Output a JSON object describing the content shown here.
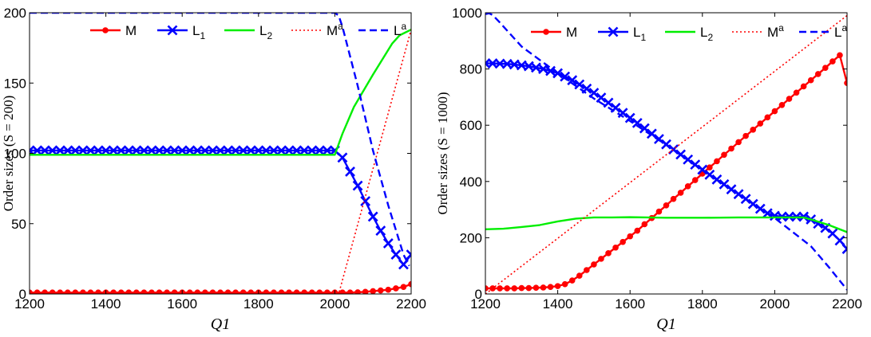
{
  "chart_data": [
    {
      "type": "line",
      "name": "left",
      "xlabel": "Q1",
      "ylabel": "Order sizes (S = 200)",
      "xlim": [
        1200,
        2200
      ],
      "ylim": [
        0,
        200
      ],
      "xticks": [
        1200,
        1400,
        1600,
        1800,
        2000,
        2200
      ],
      "yticks": [
        0,
        50,
        100,
        150,
        200
      ],
      "xtick_labels": [
        "1200",
        "1400",
        "1600",
        "1800",
        "2000",
        "2200"
      ],
      "ytick_labels": [
        "0",
        "50",
        "100",
        "150",
        "200"
      ],
      "legend_position": "top",
      "series": [
        {
          "name": "M",
          "label": "M",
          "sup": "",
          "sub": "",
          "color": "#ff0000",
          "style": "solid",
          "marker": "dot",
          "x": [
            1200,
            1220,
            1240,
            1260,
            1280,
            1300,
            1320,
            1340,
            1360,
            1380,
            1400,
            1420,
            1440,
            1460,
            1480,
            1500,
            1520,
            1540,
            1560,
            1580,
            1600,
            1620,
            1640,
            1660,
            1680,
            1700,
            1720,
            1740,
            1760,
            1780,
            1800,
            1820,
            1840,
            1860,
            1880,
            1900,
            1920,
            1940,
            1960,
            1980,
            2000,
            2020,
            2040,
            2060,
            2080,
            2100,
            2120,
            2140,
            2160,
            2180,
            2200
          ],
          "y": [
            1,
            1,
            1,
            1,
            1,
            1,
            1,
            1,
            1,
            1,
            1,
            1,
            1,
            1,
            1,
            1,
            1,
            1,
            1,
            1,
            1,
            1,
            1,
            1,
            1,
            1,
            1,
            1,
            1,
            1,
            1,
            1,
            1,
            1,
            1,
            1,
            1,
            1,
            1,
            1,
            1,
            1,
            1,
            1.2,
            1.5,
            2,
            2.5,
            3,
            4,
            5,
            7
          ]
        },
        {
          "name": "L1",
          "label": "L",
          "sup": "",
          "sub": "1",
          "color": "#0000ff",
          "style": "solid",
          "marker": "x",
          "x": [
            1200,
            1220,
            1240,
            1260,
            1280,
            1300,
            1320,
            1340,
            1360,
            1380,
            1400,
            1420,
            1440,
            1460,
            1480,
            1500,
            1520,
            1540,
            1560,
            1580,
            1600,
            1620,
            1640,
            1660,
            1680,
            1700,
            1720,
            1740,
            1760,
            1780,
            1800,
            1820,
            1840,
            1860,
            1880,
            1900,
            1920,
            1940,
            1960,
            1980,
            2000,
            2020,
            2040,
            2060,
            2080,
            2100,
            2120,
            2140,
            2160,
            2180,
            2200
          ],
          "y": [
            102,
            102,
            102,
            102,
            102,
            102,
            102,
            102,
            102,
            102,
            102,
            102,
            102,
            102,
            102,
            102,
            102,
            102,
            102,
            102,
            102,
            102,
            102,
            102,
            102,
            102,
            102,
            102,
            102,
            102,
            102,
            102,
            102,
            102,
            102,
            102,
            102,
            102,
            102,
            102,
            102,
            97,
            87,
            77,
            66,
            55,
            45,
            36,
            28,
            21,
            28
          ]
        },
        {
          "name": "L2",
          "label": "L",
          "sup": "",
          "sub": "2",
          "color": "#00ee00",
          "style": "solid",
          "marker": "none",
          "x": [
            1200,
            1300,
            1400,
            1500,
            1600,
            1700,
            1800,
            1900,
            2000,
            2020,
            2050,
            2100,
            2150,
            2170,
            2200
          ],
          "y": [
            99,
            99,
            99,
            99,
            99,
            99,
            99,
            99,
            99,
            114,
            133,
            156,
            178,
            184,
            188
          ]
        },
        {
          "name": "Ma",
          "label": "M",
          "sup": "a",
          "sub": "",
          "color": "#ff0000",
          "style": "dotted",
          "marker": "none",
          "x": [
            1200,
            2010,
            2200
          ],
          "y": [
            0,
            0,
            188
          ]
        },
        {
          "name": "La",
          "label": "L",
          "sup": "a",
          "sub": "",
          "color": "#0000ff",
          "style": "dashed",
          "marker": "none",
          "x": [
            1200,
            2000,
            2010,
            2020,
            2060,
            2100,
            2140,
            2180,
            2195
          ],
          "y": [
            200,
            200,
            198,
            190,
            148,
            102,
            63,
            28,
            20
          ]
        }
      ]
    },
    {
      "type": "line",
      "name": "right",
      "xlabel": "Q1",
      "ylabel": "Order sizes (S = 1000)",
      "xlim": [
        1200,
        2200
      ],
      "ylim": [
        0,
        1000
      ],
      "xticks": [
        1200,
        1400,
        1600,
        1800,
        2000,
        2200
      ],
      "yticks": [
        0,
        200,
        400,
        600,
        800,
        1000
      ],
      "xtick_labels": [
        "1200",
        "1400",
        "1600",
        "1800",
        "2000",
        "2200"
      ],
      "ytick_labels": [
        "0",
        "200",
        "400",
        "600",
        "800",
        "1000"
      ],
      "legend_position": "top",
      "series": [
        {
          "name": "M",
          "label": "M",
          "sup": "",
          "sub": "",
          "color": "#ff0000",
          "style": "solid",
          "marker": "dot",
          "x": [
            1200,
            1220,
            1240,
            1260,
            1280,
            1300,
            1320,
            1340,
            1360,
            1380,
            1400,
            1420,
            1440,
            1460,
            1480,
            1500,
            1520,
            1540,
            1560,
            1580,
            1600,
            1620,
            1640,
            1660,
            1680,
            1700,
            1720,
            1740,
            1760,
            1780,
            1800,
            1820,
            1840,
            1860,
            1880,
            1900,
            1920,
            1940,
            1960,
            1980,
            2000,
            2020,
            2040,
            2060,
            2080,
            2100,
            2120,
            2140,
            2160,
            2180,
            2200
          ],
          "y": [
            20,
            20,
            20,
            20,
            20,
            21,
            21,
            22,
            23,
            25,
            28,
            35,
            48,
            65,
            85,
            105,
            125,
            145,
            165,
            185,
            205,
            225,
            248,
            270,
            293,
            315,
            338,
            360,
            383,
            405,
            428,
            450,
            472,
            495,
            517,
            540,
            562,
            584,
            606,
            628,
            650,
            672,
            694,
            716,
            738,
            760,
            782,
            804,
            827,
            849,
            750
          ]
        },
        {
          "name": "L1",
          "label": "L",
          "sup": "",
          "sub": "1",
          "color": "#0000ff",
          "style": "solid",
          "marker": "x",
          "x": [
            1200,
            1220,
            1240,
            1260,
            1280,
            1300,
            1320,
            1340,
            1360,
            1380,
            1400,
            1420,
            1440,
            1460,
            1480,
            1500,
            1520,
            1540,
            1560,
            1580,
            1600,
            1620,
            1640,
            1660,
            1680,
            1700,
            1720,
            1740,
            1760,
            1780,
            1800,
            1820,
            1840,
            1860,
            1880,
            1900,
            1920,
            1940,
            1960,
            1980,
            2000,
            2020,
            2040,
            2060,
            2080,
            2100,
            2120,
            2140,
            2160,
            2180,
            2200
          ],
          "y": [
            820,
            820,
            819,
            818,
            816,
            813,
            810,
            805,
            800,
            793,
            785,
            773,
            760,
            745,
            730,
            715,
            698,
            680,
            662,
            644,
            626,
            608,
            589,
            570,
            551,
            532,
            514,
            496,
            478,
            460,
            442,
            424,
            407,
            390,
            372,
            355,
            338,
            320,
            303,
            287,
            278,
            275,
            275,
            275,
            275,
            265,
            250,
            235,
            215,
            190,
            160
          ]
        },
        {
          "name": "L2",
          "label": "L",
          "sup": "",
          "sub": "2",
          "color": "#00ee00",
          "style": "solid",
          "marker": "none",
          "x": [
            1200,
            1250,
            1300,
            1350,
            1400,
            1450,
            1500,
            1550,
            1600,
            1650,
            1700,
            1800,
            1900,
            2000,
            2080,
            2100,
            2150,
            2200
          ],
          "y": [
            230,
            232,
            238,
            245,
            258,
            268,
            272,
            272,
            273,
            272,
            271,
            271,
            272,
            272,
            272,
            265,
            245,
            220
          ]
        },
        {
          "name": "Ma",
          "label": "M",
          "sup": "a",
          "sub": "",
          "color": "#ff0000",
          "style": "dotted",
          "marker": "none",
          "x": [
            1200,
            2200
          ],
          "y": [
            0,
            990
          ]
        },
        {
          "name": "La",
          "label": "L",
          "sup": "a",
          "sub": "",
          "color": "#0000ff",
          "style": "dashed",
          "marker": "none",
          "x": [
            1200,
            1210,
            1220,
            1240,
            1300,
            1400,
            1500,
            1600,
            1700,
            1800,
            1900,
            2000,
            2100,
            2150,
            2200
          ],
          "y": [
            995,
            998,
            992,
            965,
            880,
            785,
            695,
            615,
            530,
            440,
            355,
            270,
            170,
            95,
            15
          ]
        }
      ]
    }
  ]
}
